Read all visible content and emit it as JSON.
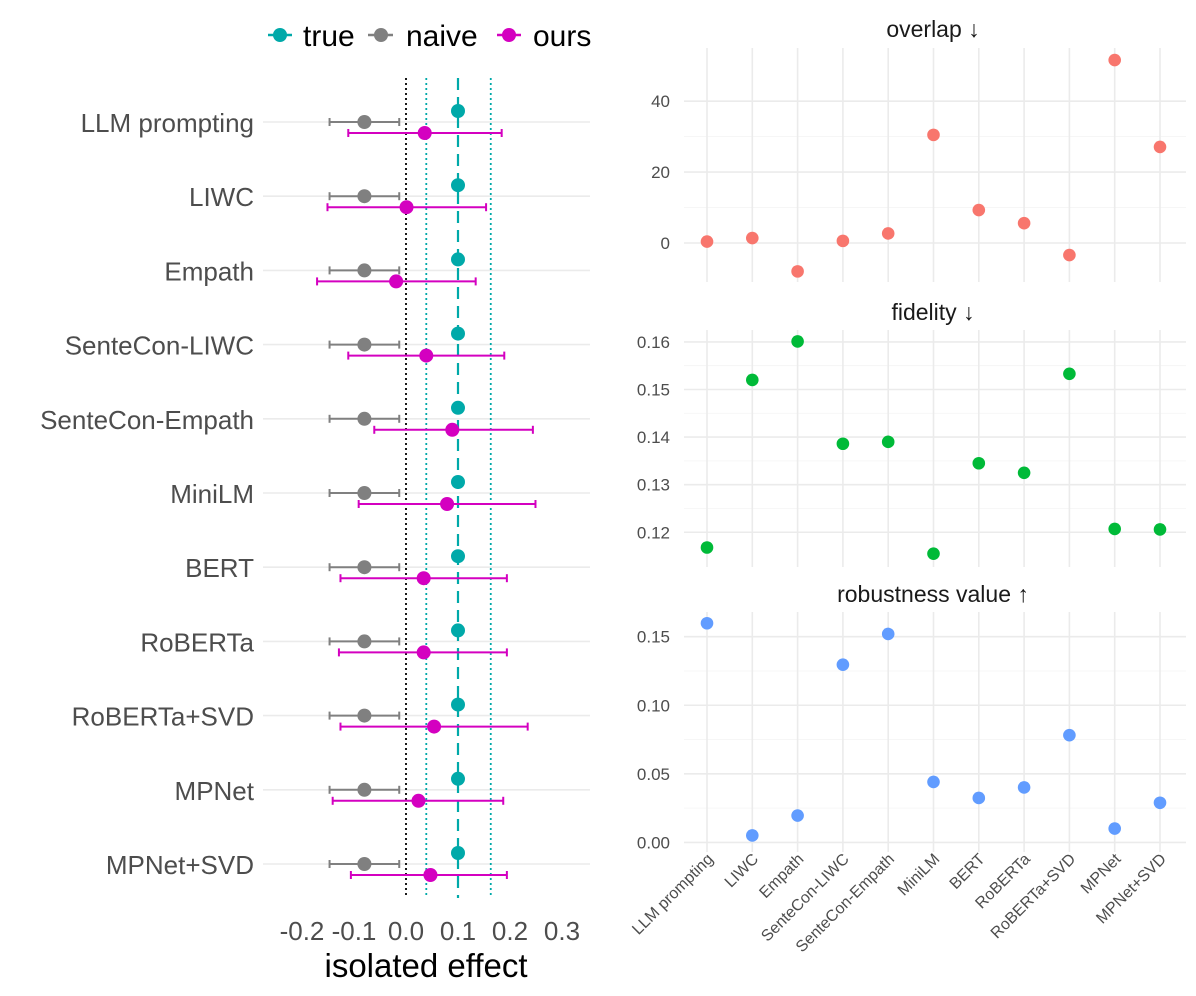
{
  "legend": {
    "items": [
      {
        "name": "true",
        "color": "#00a9a9"
      },
      {
        "name": "naive",
        "color": "#808080"
      },
      {
        "name": "ours",
        "color": "#d400c0"
      }
    ]
  },
  "chart_data": [
    {
      "type": "errorbar",
      "title": "",
      "xlabel": "isolated effect",
      "ylabel": "",
      "xlim": [
        -0.28,
        0.36
      ],
      "xticks": [
        -0.2,
        -0.1,
        0.0,
        0.1,
        0.2,
        0.3
      ],
      "xtick_labels": [
        "-0.2",
        "-0.1",
        "0.0",
        "0.1",
        "0.2",
        "0.3"
      ],
      "vlines": [
        {
          "x": 0.0,
          "style": "dotted",
          "color": "#000000"
        },
        {
          "x": 0.1,
          "style": "dashed",
          "color": "#00a9a9"
        },
        {
          "x": 0.039,
          "style": "dotted",
          "color": "#00a9a9"
        },
        {
          "x": 0.163,
          "style": "dotted",
          "color": "#00a9a9"
        }
      ],
      "categories": [
        "LLM prompting",
        "LIWC",
        "Empath",
        "SenteCon-LIWC",
        "SenteCon-Empath",
        "MiniLM",
        "BERT",
        "RoBERTa",
        "RoBERTa+SVD",
        "MPNet",
        "MPNet+SVD"
      ],
      "series": [
        {
          "name": "true",
          "color": "#00a9a9",
          "values": [
            0.1,
            0.1,
            0.1,
            0.1,
            0.1,
            0.1,
            0.1,
            0.1,
            0.1,
            0.1,
            0.1
          ],
          "lower": null,
          "upper": null
        },
        {
          "name": "naive",
          "color": "#808080",
          "values": [
            -0.08,
            -0.08,
            -0.08,
            -0.08,
            -0.08,
            -0.08,
            -0.08,
            -0.08,
            -0.08,
            -0.08,
            -0.08
          ],
          "lower": [
            -0.147,
            -0.147,
            -0.147,
            -0.147,
            -0.147,
            -0.147,
            -0.147,
            -0.147,
            -0.147,
            -0.147,
            -0.147
          ],
          "upper": [
            -0.013,
            -0.013,
            -0.013,
            -0.013,
            -0.013,
            -0.013,
            -0.013,
            -0.013,
            -0.013,
            -0.013,
            -0.013
          ]
        },
        {
          "name": "ours",
          "color": "#d400c0",
          "values": [
            0.036,
            0.001,
            -0.019,
            0.039,
            0.089,
            0.079,
            0.034,
            0.034,
            0.054,
            0.024,
            0.047
          ],
          "lower": [
            -0.111,
            -0.151,
            -0.171,
            -0.111,
            -0.061,
            -0.091,
            -0.126,
            -0.129,
            -0.126,
            -0.141,
            -0.106
          ],
          "upper": [
            0.184,
            0.154,
            0.134,
            0.189,
            0.244,
            0.249,
            0.194,
            0.194,
            0.234,
            0.187,
            0.194
          ]
        }
      ]
    },
    {
      "type": "scatter",
      "title": "overlap ↓",
      "color": "#f8766d",
      "categories": [
        "LLM prompting",
        "LIWC",
        "Empath",
        "SenteCon-LIWC",
        "SenteCon-Empath",
        "MiniLM",
        "BERT",
        "RoBERTa",
        "RoBERTa+SVD",
        "MPNet",
        "MPNet+SVD"
      ],
      "values": [
        0.4,
        1.4,
        -8.0,
        0.6,
        2.7,
        30.5,
        9.3,
        5.6,
        -3.4,
        51.6,
        27.1
      ],
      "ylim": [
        -11,
        55
      ],
      "yticks": [
        0,
        20,
        40
      ],
      "ytick_labels": [
        "0",
        "20",
        "40"
      ]
    },
    {
      "type": "scatter",
      "title": "fidelity ↓",
      "color": "#00ba38",
      "categories": [
        "LLM prompting",
        "LIWC",
        "Empath",
        "SenteCon-LIWC",
        "SenteCon-Empath",
        "MiniLM",
        "BERT",
        "RoBERTa",
        "RoBERTa+SVD",
        "MPNet",
        "MPNet+SVD"
      ],
      "values": [
        0.1168,
        0.152,
        0.1601,
        0.1386,
        0.139,
        0.1155,
        0.1345,
        0.1325,
        0.1533,
        0.1207,
        0.1206
      ],
      "ylim": [
        0.1127,
        0.1625
      ],
      "yticks": [
        0.12,
        0.13,
        0.14,
        0.15,
        0.16
      ],
      "ytick_labels": [
        "0.12",
        "0.13",
        "0.14",
        "0.15",
        "0.16"
      ]
    },
    {
      "type": "scatter",
      "title": "robustness value ↑",
      "xlabel": "",
      "color": "#619cff",
      "categories": [
        "LLM prompting",
        "LIWC",
        "Empath",
        "SenteCon-LIWC",
        "SenteCon-Empath",
        "MiniLM",
        "BERT",
        "RoBERTa",
        "RoBERTa+SVD",
        "MPNet",
        "MPNet+SVD"
      ],
      "values": [
        0.1598,
        0.0051,
        0.0196,
        0.1296,
        0.152,
        0.0441,
        0.0324,
        0.0401,
        0.0782,
        0.0101,
        0.0289
      ],
      "ylim": [
        -0.007,
        0.168
      ],
      "yticks": [
        0.0,
        0.05,
        0.1,
        0.15
      ],
      "ytick_labels": [
        "0.00",
        "0.05",
        "0.10",
        "0.15"
      ]
    }
  ]
}
